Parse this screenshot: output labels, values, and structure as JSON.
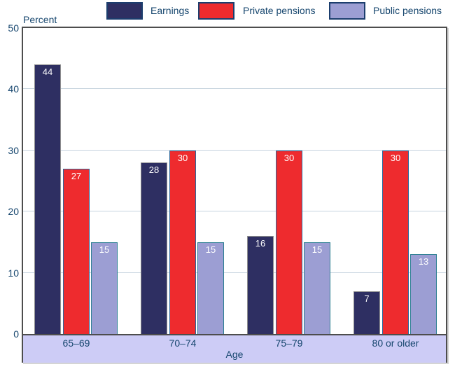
{
  "percent_axis_title": "Percent",
  "chart_data": {
    "type": "bar",
    "title": "",
    "categories": [
      "65–69",
      "70–74",
      "75–79",
      "80 or older"
    ],
    "series": [
      {
        "name": "Earnings",
        "color": "#2e2f62",
        "border_color": "#8f8f8f",
        "values": [
          44,
          28,
          16,
          7
        ]
      },
      {
        "name": "Private pensions",
        "color": "#ee2b2e",
        "border_color": "#2b689c",
        "values": [
          27,
          30,
          30,
          30
        ]
      },
      {
        "name": "Public pensions",
        "color": "#9c9ed3",
        "border_color": "#2f8093",
        "values": [
          15,
          15,
          15,
          13
        ]
      }
    ],
    "xlabel": "Age",
    "ylabel": "Percent",
    "yticks": [
      0,
      10,
      20,
      30,
      40,
      50
    ],
    "ylim": [
      0,
      50
    ],
    "grid": true,
    "legend_position": "top",
    "bar_label_color": "#ffffff",
    "gridline_color": "#c6d3de",
    "category_strip_color": "#cdccf6",
    "axis_text_color": "#16466e",
    "box_border_color": "#4d4d4d",
    "legend_swatch_border_color": "#1c3e6e"
  }
}
